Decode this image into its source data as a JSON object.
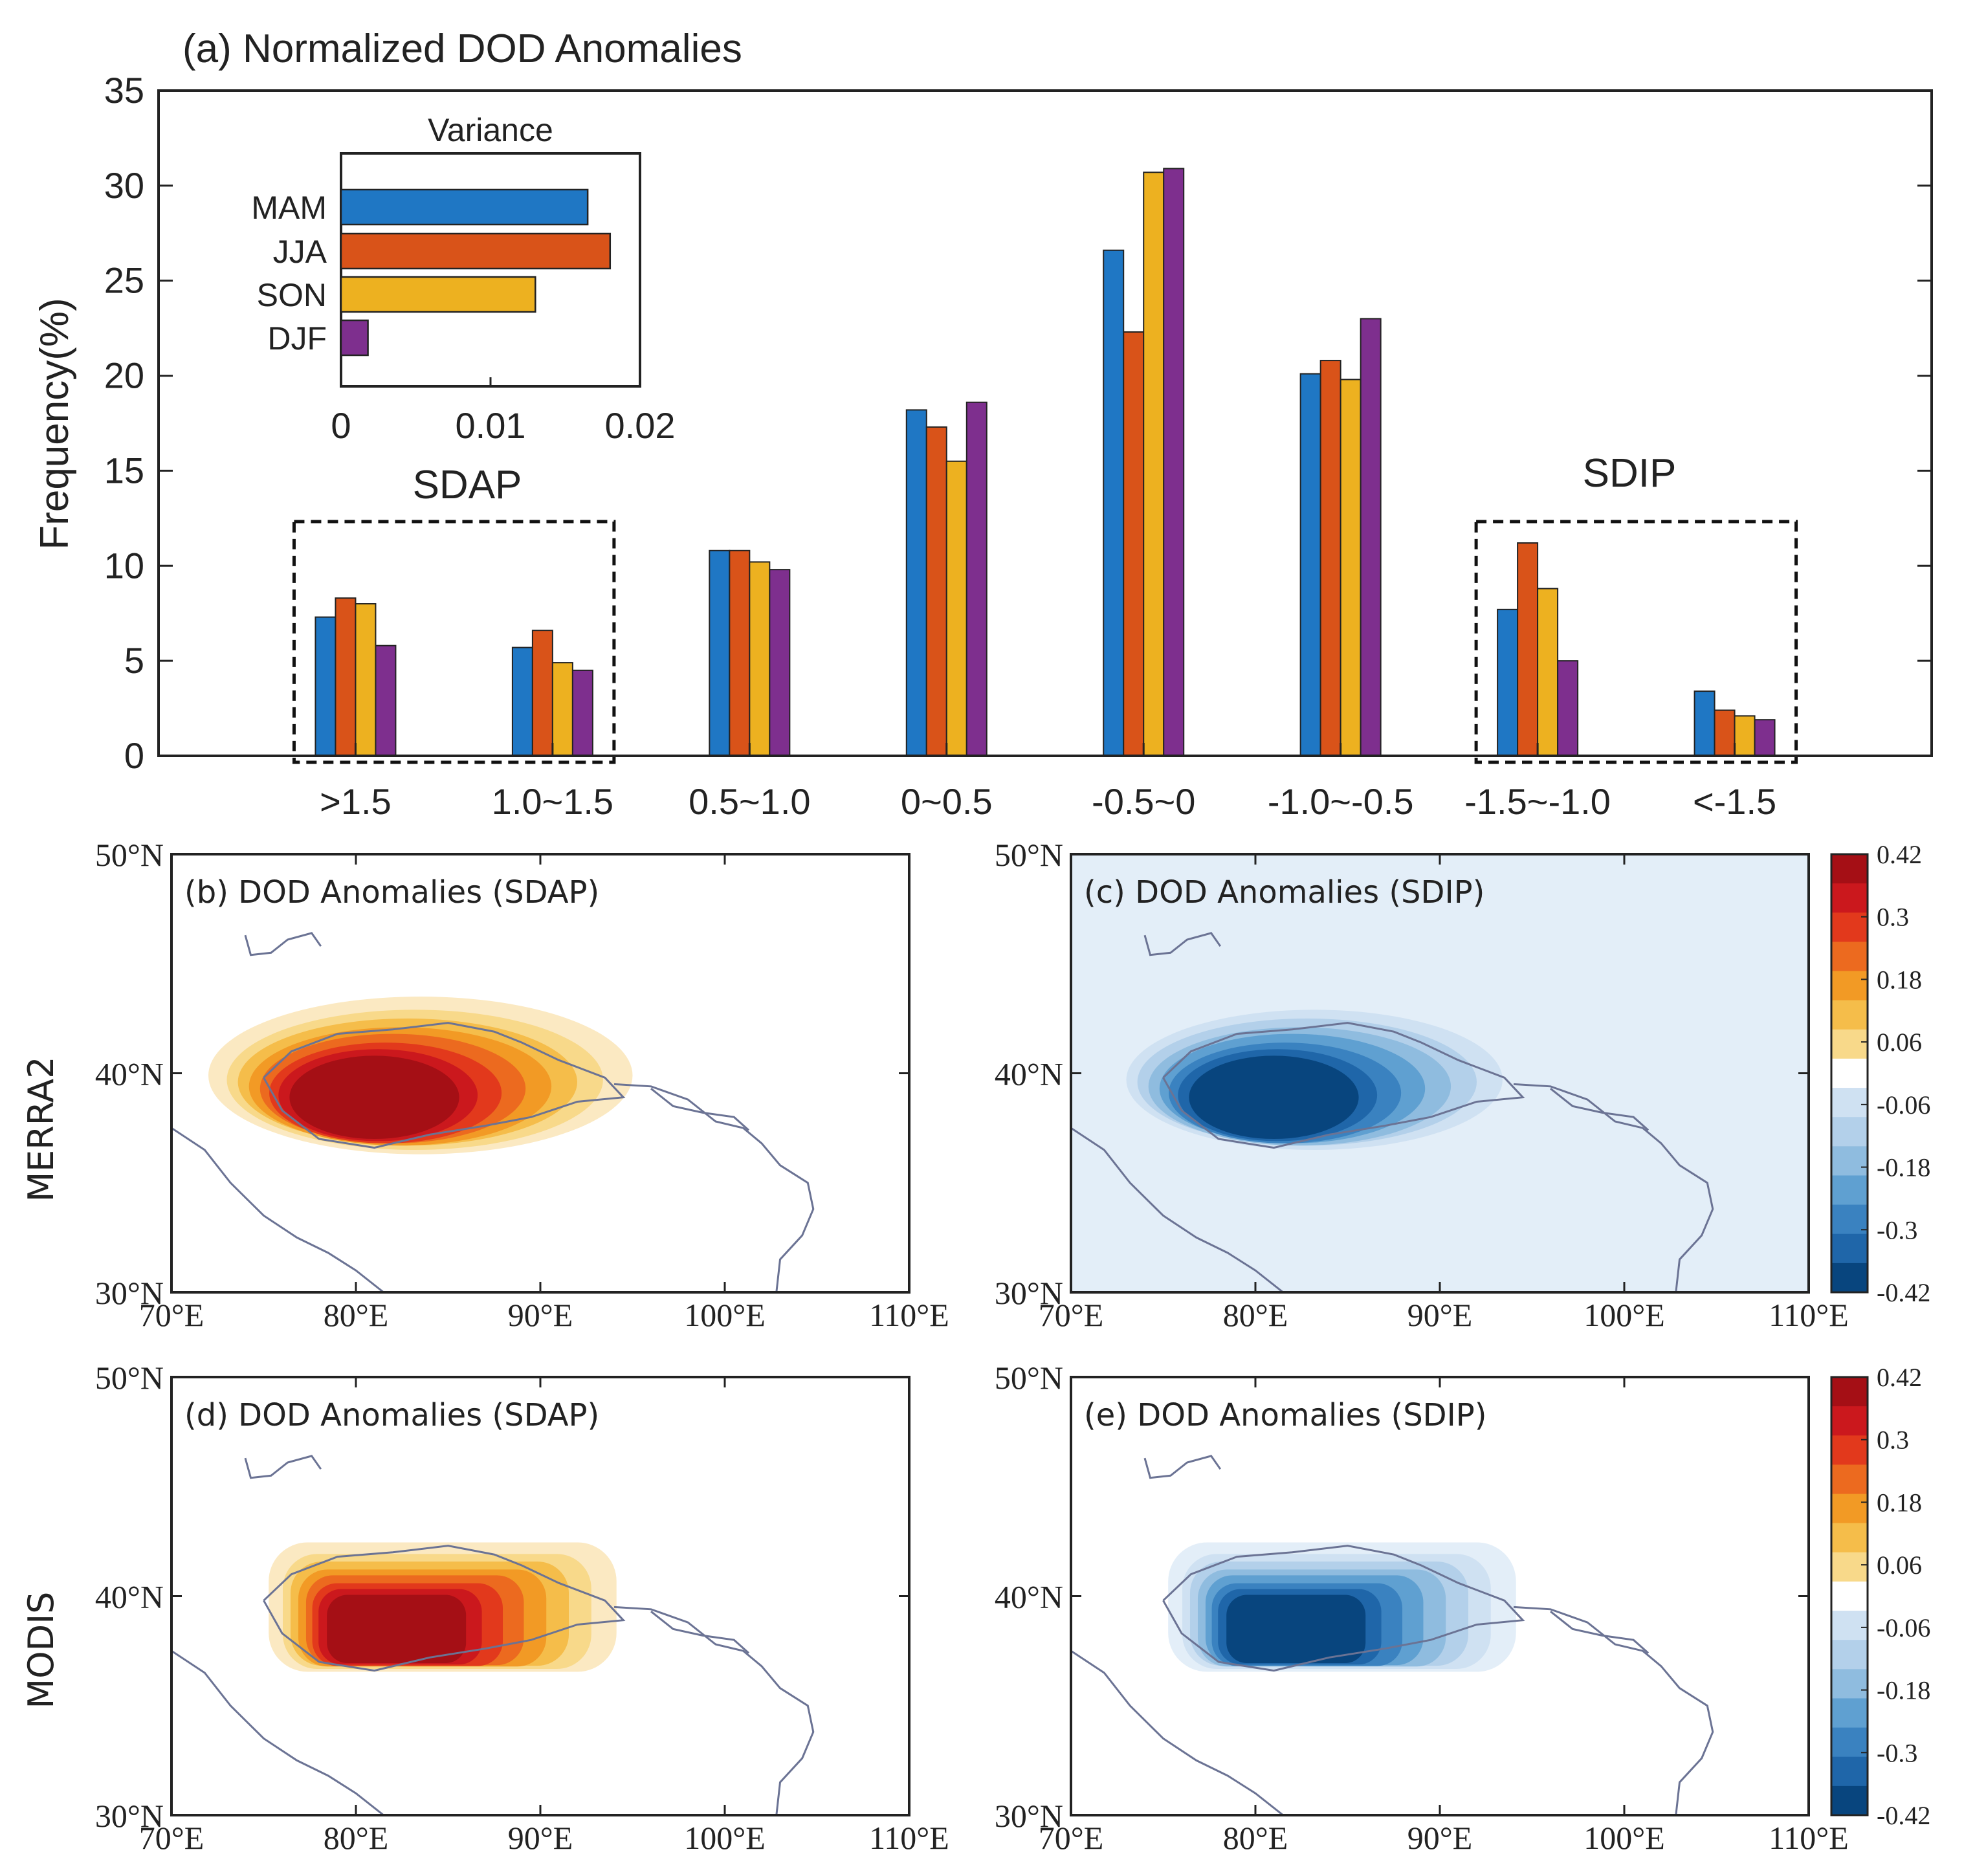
{
  "chart_data": [
    {
      "panel": "a",
      "type": "bar",
      "title": "(a) Normalized DOD Anomalies",
      "xlabel": "",
      "ylabel": "Frequency(%)",
      "ylim": [
        0,
        35
      ],
      "yticks": [
        "0",
        "5",
        "10",
        "15",
        "20",
        "25",
        "30",
        "35"
      ],
      "categories": [
        ">1.5",
        "1.0~1.5",
        "0.5~1.0",
        "0~0.5",
        "-0.5~0",
        "-1.0~-0.5",
        "-1.5~-1.0",
        "<-1.5"
      ],
      "series": [
        {
          "name": "MAM",
          "color": "#1f77c4",
          "values": [
            7.3,
            5.7,
            10.8,
            18.2,
            26.6,
            20.1,
            7.7,
            3.4
          ]
        },
        {
          "name": "JJA",
          "color": "#d95319",
          "values": [
            8.3,
            6.6,
            10.8,
            17.3,
            22.3,
            20.8,
            11.2,
            2.4
          ]
        },
        {
          "name": "SON",
          "color": "#edb120",
          "values": [
            8.0,
            4.9,
            10.2,
            15.5,
            30.7,
            19.8,
            8.8,
            2.1
          ]
        },
        {
          "name": "DJF",
          "color": "#7e2f8e",
          "values": [
            5.8,
            4.5,
            9.8,
            18.6,
            30.9,
            23.0,
            5.0,
            1.9
          ]
        }
      ],
      "annotations": [
        "SDAP",
        "SDIP"
      ]
    },
    {
      "panel": "a-inset",
      "type": "bar",
      "orientation": "horizontal",
      "title": "Variance",
      "categories": [
        "MAM",
        "JJA",
        "SON",
        "DJF"
      ],
      "values": [
        0.0165,
        0.018,
        0.013,
        0.0018
      ],
      "xlim": [
        0,
        0.02
      ],
      "xticks": [
        "0",
        "0.01",
        "0.02"
      ]
    }
  ],
  "maps": {
    "row_labels": [
      "MERRA2",
      "MODIS"
    ],
    "panels": [
      {
        "id": "b",
        "title": "(b) DOD Anomalies (SDAP)"
      },
      {
        "id": "c",
        "title": "(c) DOD Anomalies (SDIP)"
      },
      {
        "id": "d",
        "title": "(d) DOD Anomalies (SDAP)"
      },
      {
        "id": "e",
        "title": "(e) DOD Anomalies (SDIP)"
      }
    ],
    "lat_ticks": [
      "50°N",
      "40°N",
      "30°N"
    ],
    "lon_ticks": [
      "70°E",
      "80°E",
      "90°E",
      "100°E",
      "110°E"
    ],
    "colorbar_ticks": [
      "0.42",
      "0.3",
      "0.18",
      "0.06",
      "-0.06",
      "-0.18",
      "-0.3",
      "-0.42"
    ],
    "colors": {
      "pos": [
        "#a50f15",
        "#cb181d",
        "#e2391c",
        "#ec6a1f",
        "#f29a25",
        "#f5bd4a",
        "#f8d98a",
        "#fbe9c2"
      ],
      "neg": [
        "#e3eef8",
        "#cfe1f2",
        "#b3d0ea",
        "#8fbcdf",
        "#5fa0d1",
        "#3a82c0",
        "#1f66a9",
        "#08457e"
      ]
    }
  }
}
